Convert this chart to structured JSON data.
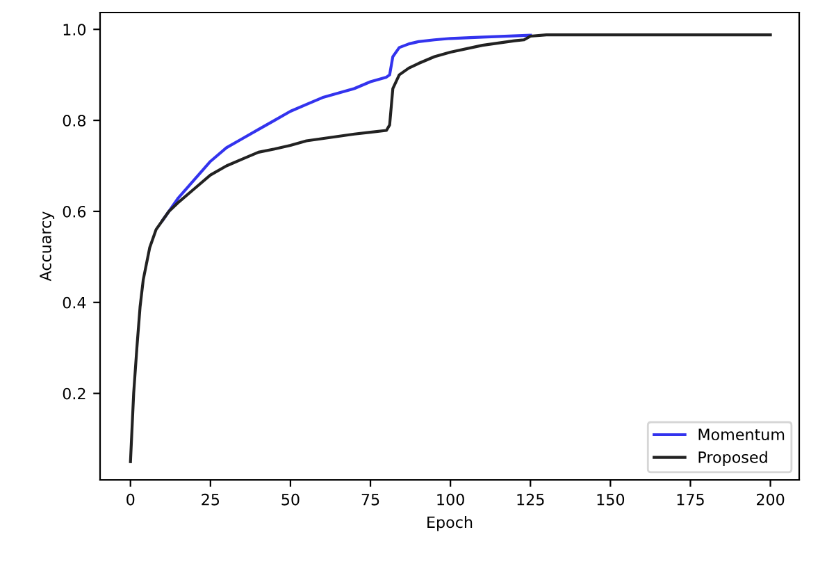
{
  "chart_data": {
    "type": "line",
    "xlabel": "Epoch",
    "ylabel": "Accuarcy",
    "xlim": [
      -9.5,
      209
    ],
    "ylim": [
      0.01,
      1.037
    ],
    "xticks": [
      0,
      25,
      50,
      75,
      100,
      125,
      150,
      175,
      200
    ],
    "yticks": [
      0.2,
      0.4,
      0.6,
      0.8,
      {
        "value": 1,
        "label": "1.0"
      }
    ],
    "grid": false,
    "legend": "bottom right",
    "series": [
      {
        "name": "Momentum",
        "color": "#3333ee",
        "x": [
          10,
          12,
          15,
          20,
          25,
          30,
          35,
          40,
          45,
          50,
          55,
          60,
          65,
          70,
          75,
          80,
          81,
          82,
          84,
          87,
          90,
          95,
          100,
          110,
          125
        ],
        "values": [
          0.58,
          0.6,
          0.63,
          0.67,
          0.71,
          0.74,
          0.76,
          0.78,
          0.8,
          0.82,
          0.835,
          0.85,
          0.86,
          0.87,
          0.885,
          0.895,
          0.9,
          0.94,
          0.96,
          0.968,
          0.973,
          0.977,
          0.98,
          0.983,
          0.987
        ]
      },
      {
        "name": "Proposed",
        "color": "#222222",
        "x": [
          0,
          1,
          2,
          3,
          4,
          6,
          8,
          10,
          12,
          15,
          20,
          25,
          30,
          35,
          40,
          45,
          50,
          55,
          60,
          65,
          70,
          75,
          80,
          81,
          82,
          84,
          87,
          90,
          95,
          100,
          110,
          120,
          123,
          125,
          130,
          150,
          175,
          200
        ],
        "values": [
          0.05,
          0.2,
          0.3,
          0.39,
          0.45,
          0.52,
          0.56,
          0.58,
          0.6,
          0.62,
          0.65,
          0.68,
          0.7,
          0.715,
          0.73,
          0.737,
          0.745,
          0.755,
          0.76,
          0.765,
          0.77,
          0.774,
          0.778,
          0.79,
          0.87,
          0.9,
          0.915,
          0.925,
          0.94,
          0.95,
          0.965,
          0.975,
          0.977,
          0.985,
          0.988,
          0.988,
          0.988,
          0.988
        ]
      }
    ]
  }
}
